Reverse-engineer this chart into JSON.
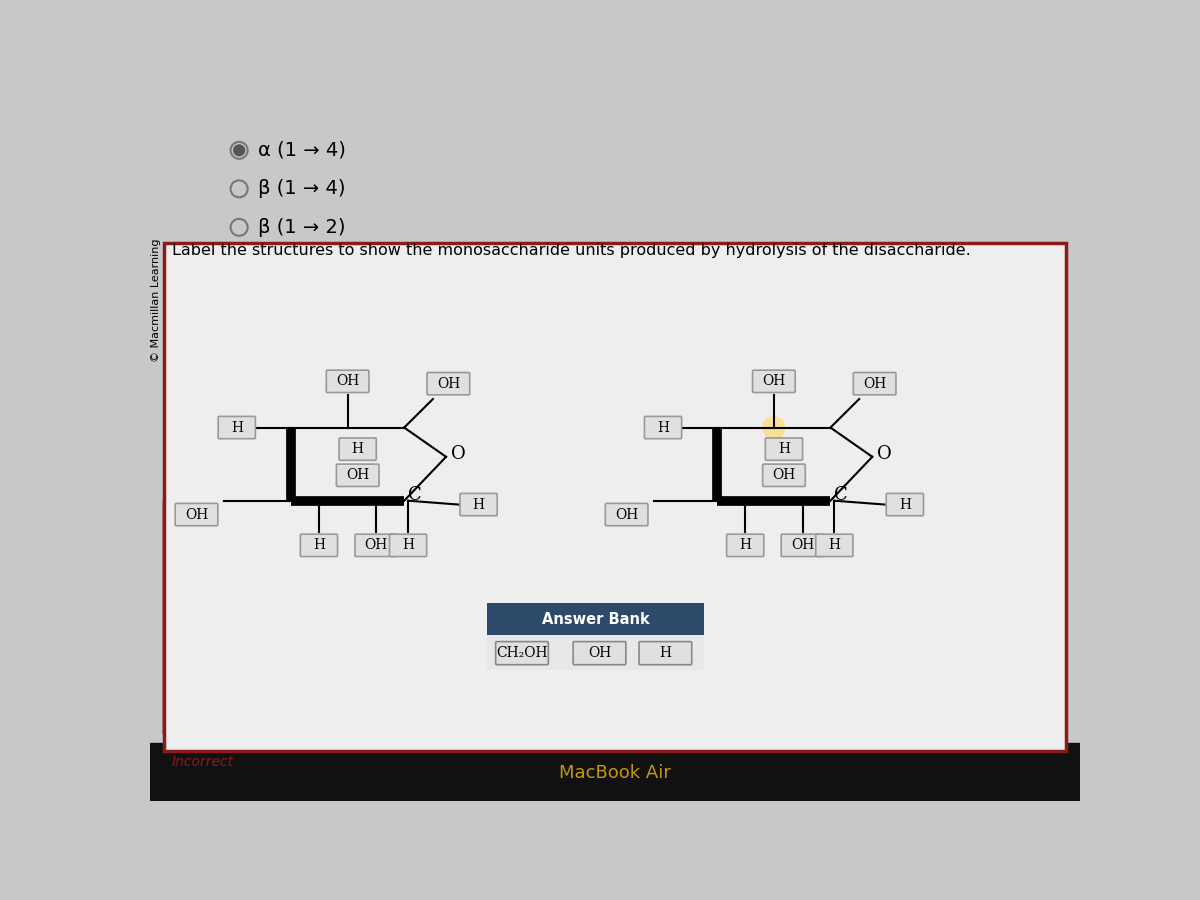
{
  "bg_color_top": "#c8c8c8",
  "bg_color_bottom": "#d0d0d0",
  "main_bg": "#eeeeee",
  "red_border": "#8b1a1a",
  "title_text": "Label the structures to show the monosaccharide units produced by hydrolysis of the disaccharide.",
  "radio_options": [
    {
      "text": "α (1 → 4)",
      "selected": true
    },
    {
      "text": "β (1 → 4)",
      "selected": false
    },
    {
      "text": "β (1 → 2)",
      "selected": false
    }
  ],
  "copyright": "© Macmillan Learning",
  "incorrect_text": "Incorrect",
  "macbook_text": "MacBook Air",
  "answer_bank_title": "Answer Bank",
  "answer_bank_bg": "#2d4a6b",
  "answer_bank_items": [
    "CH₂OH",
    "OH",
    "H"
  ],
  "box_bg": "#e0e0e0",
  "box_border": "#999999",
  "bottom_bar": "#111111",
  "macbook_color": "#c8960c"
}
